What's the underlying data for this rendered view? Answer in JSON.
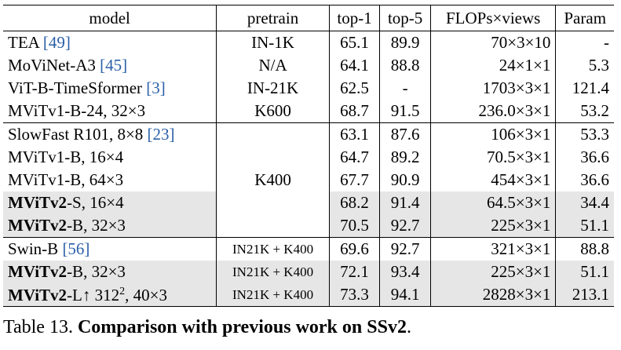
{
  "header": {
    "model": "model",
    "pretrain": "pretrain",
    "top1": "top-1",
    "top5": "top-5",
    "flops": "FLOPs×views",
    "param": "Param"
  },
  "groups": [
    {
      "rows": [
        {
          "model_bold": "",
          "model_rest": "TEA ",
          "cite": "[49]",
          "pretrain": "IN-1K",
          "top1": "65.1",
          "top5": "89.9",
          "flops": "70×3×10",
          "param": "-"
        },
        {
          "model_bold": "",
          "model_rest": "MoViNet-A3 ",
          "cite": "[45]",
          "pretrain": "N/A",
          "top1": "64.1",
          "top5": "88.8",
          "flops": "24×1×1",
          "param": "5.3"
        },
        {
          "model_bold": "",
          "model_rest": "ViT-B-TimeSformer ",
          "cite": "[3]",
          "pretrain": "IN-21K",
          "top1": "62.5",
          "top5": "-",
          "flops": "1703×3×1",
          "param": "121.4"
        },
        {
          "model_bold": "",
          "model_rest": "MViTv1-B-24, 32×3",
          "cite": "",
          "pretrain": "K600",
          "top1": "68.7",
          "top5": "91.5",
          "flops": "236.0×3×1",
          "param": "53.2"
        }
      ]
    },
    {
      "pretrain_merged": "K400",
      "rows": [
        {
          "model_bold": "",
          "model_rest": "SlowFast R101, 8×8 ",
          "cite": "[23]",
          "top1": "63.1",
          "top5": "87.6",
          "flops": "106×3×1",
          "param": "53.3"
        },
        {
          "model_bold": "",
          "model_rest": "MViTv1-B, 16×4",
          "cite": "",
          "top1": "64.7",
          "top5": "89.2",
          "flops": "70.5×3×1",
          "param": "36.6"
        },
        {
          "model_bold": "",
          "model_rest": "MViTv1-B, 64×3",
          "cite": "",
          "top1": "67.7",
          "top5": "90.9",
          "flops": "454×3×1",
          "param": "36.6"
        },
        {
          "model_bold": "MViTv2",
          "model_rest": "-S, 16×4",
          "cite": "",
          "top1": "68.2",
          "top5": "91.4",
          "flops": "64.5×3×1",
          "param": "34.4"
        },
        {
          "model_bold": "MViTv2",
          "model_rest": "-B, 32×3",
          "cite": "",
          "top1": "70.5",
          "top5": "92.7",
          "flops": "225×3×1",
          "param": "51.1"
        }
      ]
    },
    {
      "rows": [
        {
          "model_bold": "",
          "model_rest": "Swin-B ",
          "cite": "[56]",
          "pretrain": "IN21K + K400",
          "top1": "69.6",
          "top5": "92.7",
          "flops": "321×3×1",
          "param": "88.8"
        },
        {
          "model_bold": "MViTv2",
          "model_rest": "-B, 32×3",
          "cite": "",
          "pretrain": "IN21K + K400",
          "top1": "72.1",
          "top5": "93.4",
          "flops": "225×3×1",
          "param": "51.1"
        },
        {
          "model_bold": "MViTv2",
          "model_rest": "-L↑ 312",
          "sup": "2",
          "model_tail": ", 40×3",
          "cite": "",
          "pretrain": "IN21K + K400",
          "top1": "73.3",
          "top5": "94.1",
          "flops": "2828×3×1",
          "param": "213.1"
        }
      ]
    }
  ],
  "caption": {
    "label": "Table 13. ",
    "title": "Comparison with previous work on SSv2",
    "end": "."
  }
}
